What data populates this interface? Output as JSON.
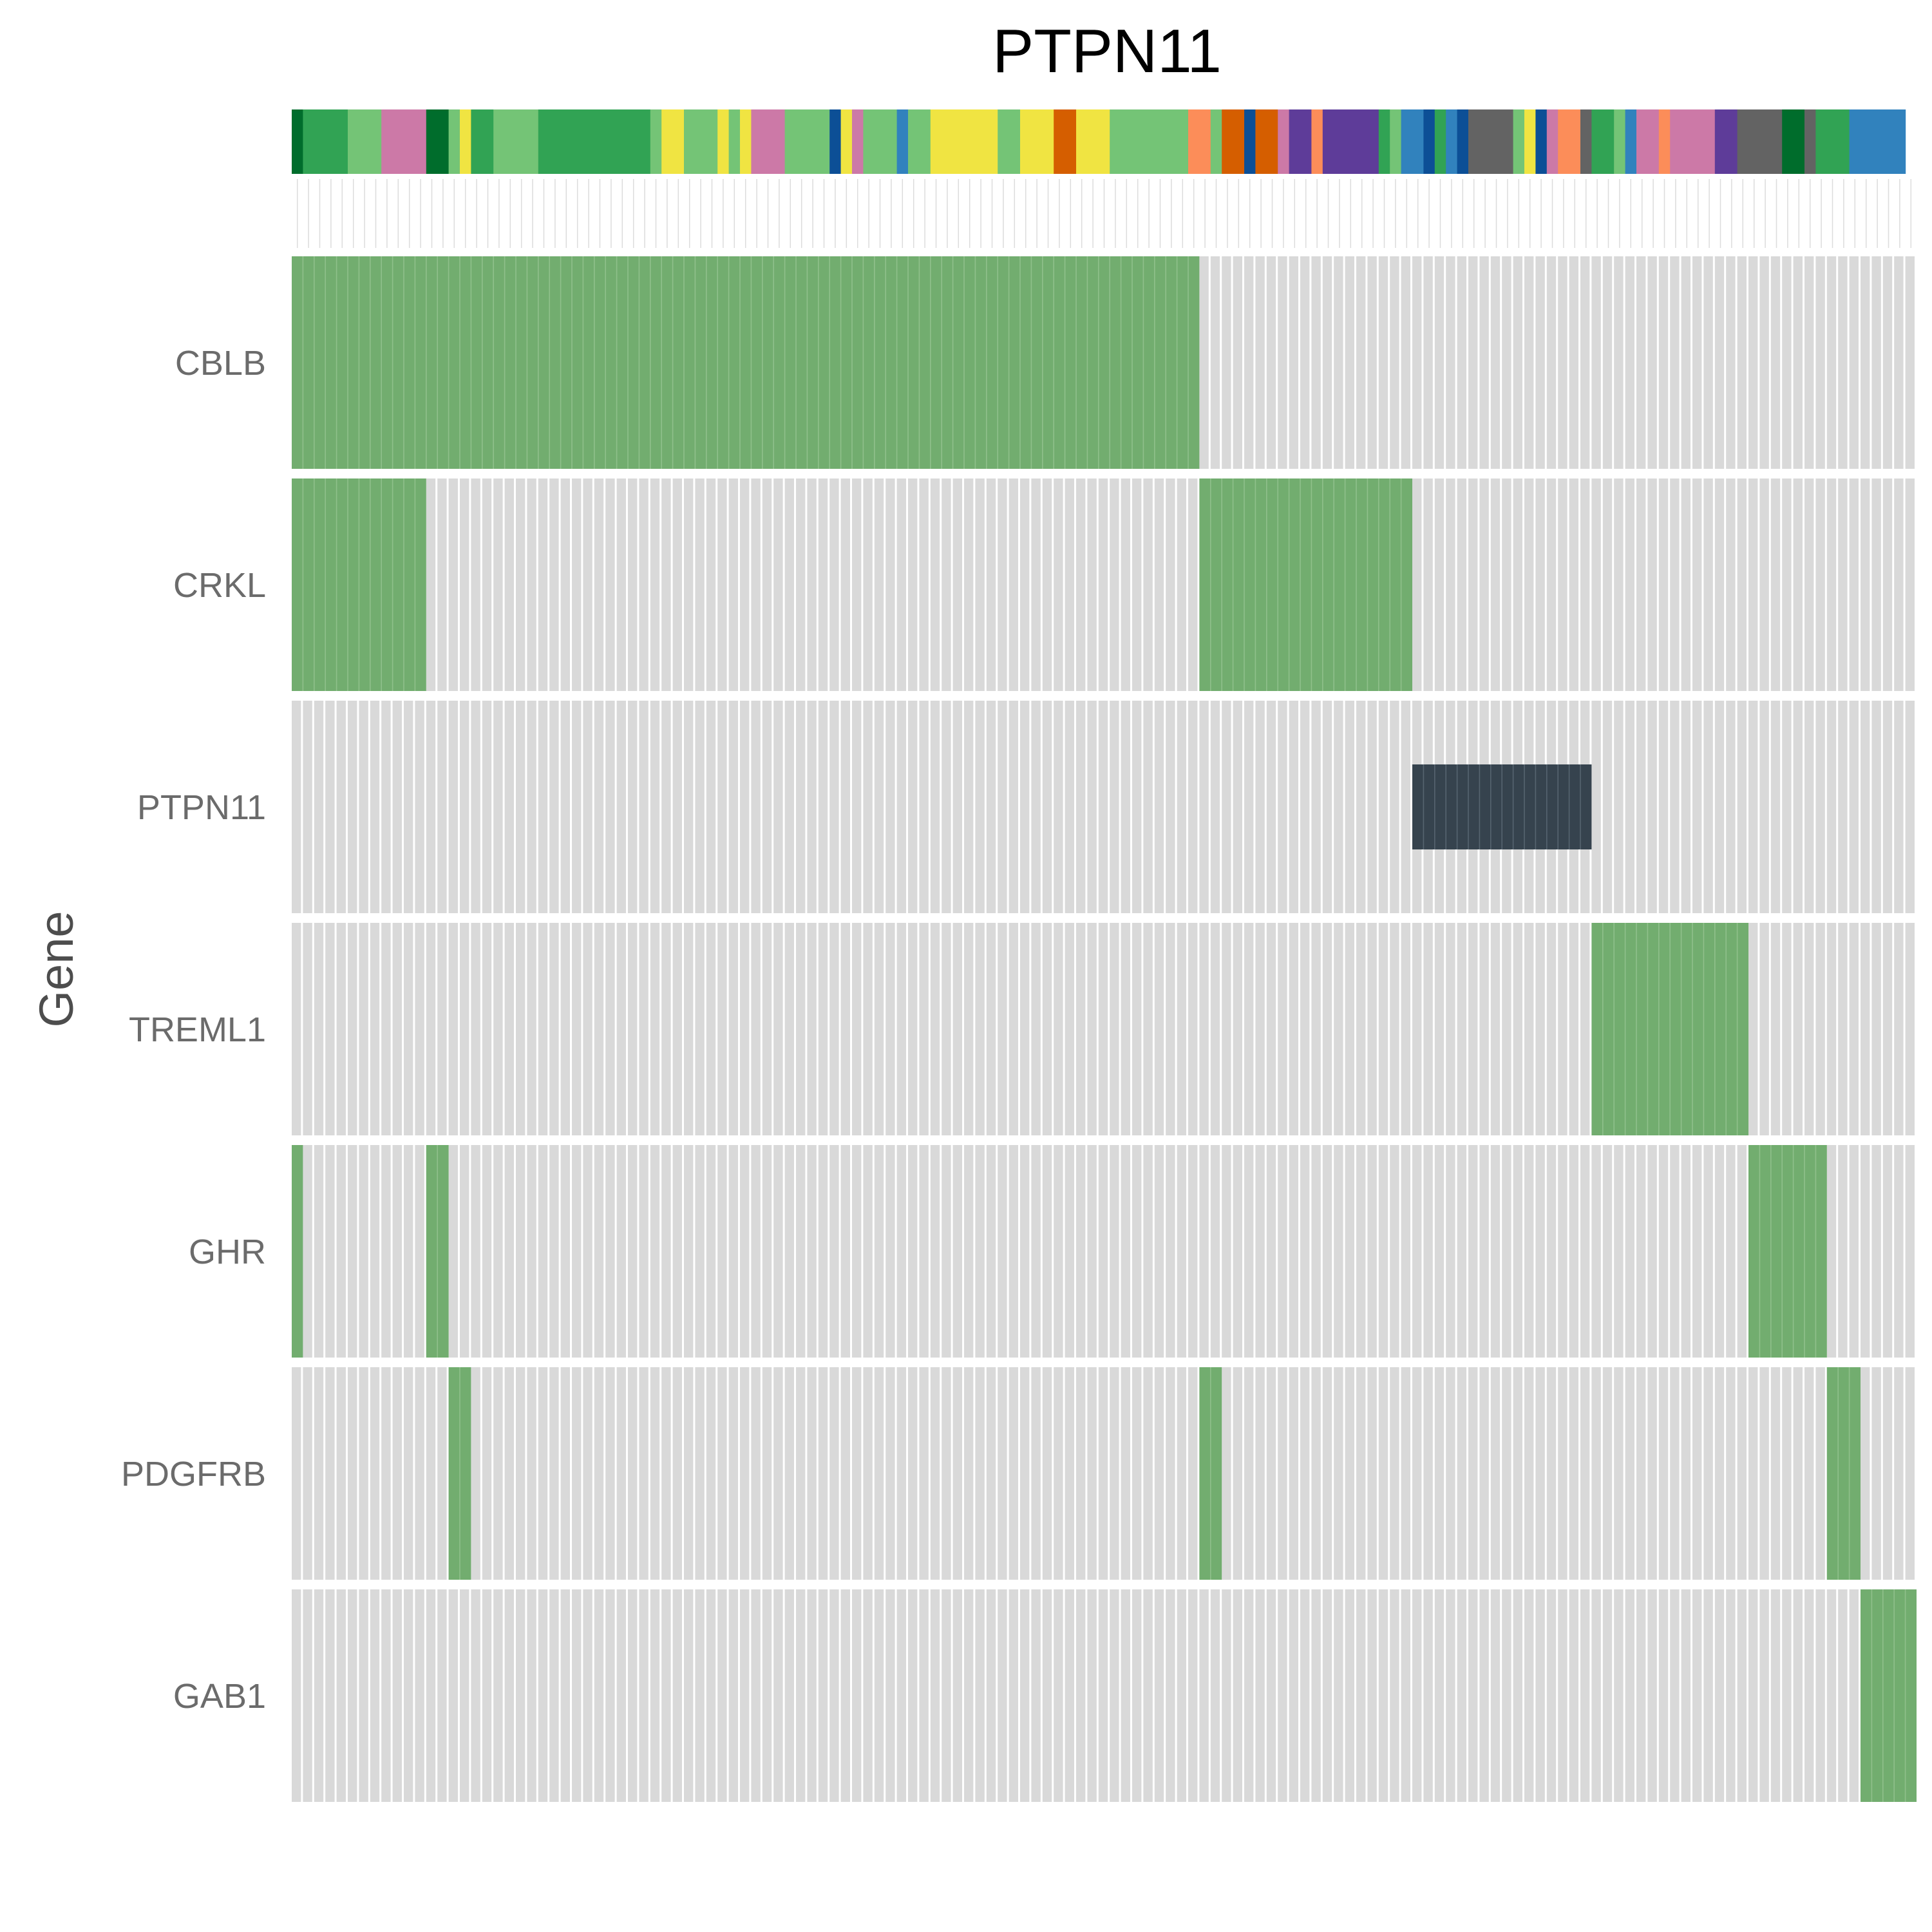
{
  "chart_data": {
    "type": "heatmap",
    "title": "PTPN11",
    "ylabel": "Gene",
    "xlabel": "",
    "n_samples": 145,
    "genes": [
      "CBLB",
      "CRKL",
      "PTPN11",
      "TREML1",
      "GHR",
      "PDGFRB",
      "GAB1"
    ],
    "alterations": [
      {
        "gene": "CBLB",
        "type": "mutation",
        "samples": [
          [
            0,
            80
          ]
        ]
      },
      {
        "gene": "CRKL",
        "type": "mutation",
        "samples": [
          [
            0,
            11
          ],
          [
            81,
            99
          ]
        ]
      },
      {
        "gene": "PTPN11",
        "type": "self",
        "samples": [
          [
            100,
            115
          ]
        ]
      },
      {
        "gene": "TREML1",
        "type": "mutation",
        "samples": [
          [
            116,
            129
          ]
        ]
      },
      {
        "gene": "GHR",
        "type": "mutation",
        "samples": [
          [
            0,
            0
          ],
          [
            12,
            13
          ],
          [
            130,
            136
          ]
        ]
      },
      {
        "gene": "PDGFRB",
        "type": "mutation",
        "samples": [
          [
            14,
            15
          ],
          [
            81,
            82
          ],
          [
            137,
            139
          ]
        ]
      },
      {
        "gene": "GAB1",
        "type": "mutation",
        "samples": [
          [
            140,
            144
          ]
        ]
      }
    ],
    "annotation_track": [
      [
        "#006d2c",
        1
      ],
      [
        "#31a354",
        4
      ],
      [
        "#74c476",
        3
      ],
      [
        "#cc79a7",
        4
      ],
      [
        "#006d2c",
        2
      ],
      [
        "#74c476",
        1
      ],
      [
        "#f0e442",
        1
      ],
      [
        "#31a354",
        2
      ],
      [
        "#74c476",
        4
      ],
      [
        "#31a354",
        10
      ],
      [
        "#74c476",
        1
      ],
      [
        "#f0e442",
        2
      ],
      [
        "#74c476",
        3
      ],
      [
        "#f0e442",
        1
      ],
      [
        "#74c476",
        1
      ],
      [
        "#f0e442",
        1
      ],
      [
        "#cc79a7",
        3
      ],
      [
        "#74c476",
        4
      ],
      [
        "#0c4f96",
        1
      ],
      [
        "#f0e442",
        1
      ],
      [
        "#cc79a7",
        1
      ],
      [
        "#74c476",
        3
      ],
      [
        "#3182bd",
        1
      ],
      [
        "#74c476",
        2
      ],
      [
        "#f0e442",
        6
      ],
      [
        "#74c476",
        2
      ],
      [
        "#f0e442",
        3
      ],
      [
        "#d55e00",
        2
      ],
      [
        "#f0e442",
        3
      ],
      [
        "#74c476",
        7
      ],
      [
        "#fc8d59",
        2
      ],
      [
        "#74c476",
        1
      ],
      [
        "#d55e00",
        2
      ],
      [
        "#0c4f96",
        1
      ],
      [
        "#d55e00",
        2
      ],
      [
        "#cc79a7",
        1
      ],
      [
        "#5e3c99",
        2
      ],
      [
        "#fc8d59",
        1
      ],
      [
        "#5e3c99",
        5
      ],
      [
        "#31a354",
        1
      ],
      [
        "#74c476",
        1
      ],
      [
        "#3182bd",
        2
      ],
      [
        "#0c4f96",
        1
      ],
      [
        "#31a354",
        1
      ],
      [
        "#3182bd",
        1
      ],
      [
        "#0c4f96",
        1
      ],
      [
        "#636363",
        4
      ],
      [
        "#74c476",
        1
      ],
      [
        "#f0e442",
        1
      ],
      [
        "#0c4f96",
        1
      ],
      [
        "#cc79a7",
        1
      ],
      [
        "#fc8d59",
        2
      ],
      [
        "#636363",
        1
      ],
      [
        "#31a354",
        2
      ],
      [
        "#74c476",
        1
      ],
      [
        "#3182bd",
        1
      ],
      [
        "#cc79a7",
        2
      ],
      [
        "#fc8d59",
        1
      ],
      [
        "#cc79a7",
        4
      ],
      [
        "#5e3c99",
        2
      ],
      [
        "#636363",
        4
      ],
      [
        "#006d2c",
        2
      ],
      [
        "#636363",
        1
      ],
      [
        "#31a354",
        3
      ],
      [
        "#3182bd",
        5
      ]
    ],
    "colors": {
      "mutation": "#72ad6f",
      "self": "#36434e",
      "none": "#d9d9d9",
      "separator": "#ffffff"
    },
    "legend": "none",
    "grid": false
  }
}
